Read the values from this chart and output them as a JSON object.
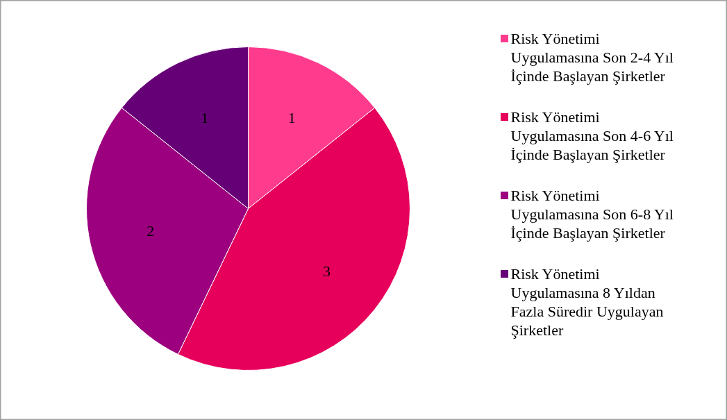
{
  "chart_data": {
    "type": "pie",
    "categories": [
      "Risk Yönetimi Uygulamasına Son 2-4 Yıl İçinde Başlayan Şirketler",
      "Risk Yönetimi Uygulamasına Son 4-6 Yıl İçinde Başlayan Şirketler",
      "Risk Yönetimi Uygulamasına Son 6-8 Yıl İçinde Başlayan Şirketler",
      "Risk Yönetimi Uygulamasına 8 Yıldan Fazla Süredir Uygulayan Şirketler"
    ],
    "values": [
      1,
      3,
      2,
      1
    ],
    "colors": [
      "#ff3b8e",
      "#e6005c",
      "#9c007f",
      "#660077"
    ],
    "data_labels": true,
    "legend": "right"
  }
}
